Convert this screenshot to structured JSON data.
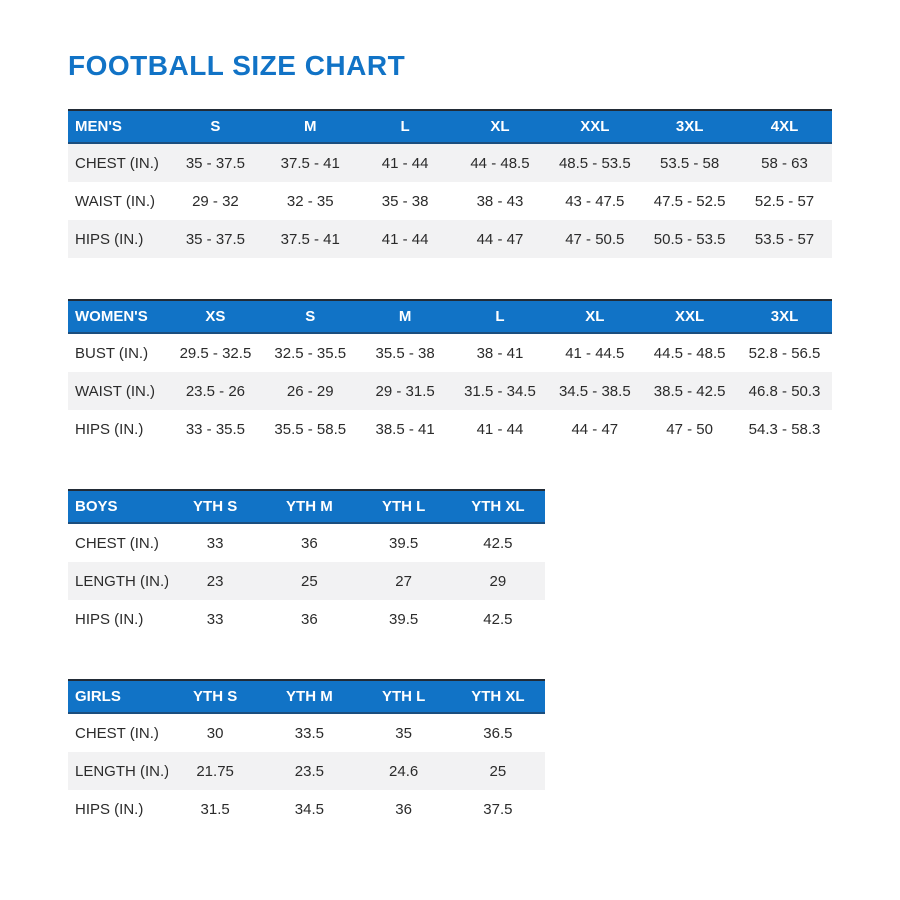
{
  "page": {
    "title": "FOOTBALL SIZE CHART"
  },
  "colors": {
    "accent_blue": "#1173C6",
    "header_text": "#FFFFFF",
    "stripe_gray": "#F2F2F3",
    "header_top_border": "#222B36",
    "body_text": "#2B2B2B"
  },
  "tables": [
    {
      "name": "MEN'S",
      "columns": [
        "S",
        "M",
        "L",
        "XL",
        "XXL",
        "3XL",
        "4XL"
      ],
      "rows": [
        {
          "label": "CHEST (IN.)",
          "values": [
            "35 - 37.5",
            "37.5 - 41",
            "41 - 44",
            "44 - 48.5",
            "48.5 - 53.5",
            "53.5 - 58",
            "58 - 63"
          ]
        },
        {
          "label": "WAIST (IN.)",
          "values": [
            "29 - 32",
            "32 - 35",
            "35 - 38",
            "38 - 43",
            "43 - 47.5",
            "47.5 - 52.5",
            "52.5 - 57"
          ]
        },
        {
          "label": "HIPS (IN.)",
          "values": [
            "35 - 37.5",
            "37.5 - 41",
            "41 - 44",
            "44 - 47",
            "47 - 50.5",
            "50.5 - 53.5",
            "53.5 - 57"
          ]
        }
      ]
    },
    {
      "name": "WOMEN'S",
      "columns": [
        "XS",
        "S",
        "M",
        "L",
        "XL",
        "XXL",
        "3XL"
      ],
      "rows": [
        {
          "label": "BUST (IN.)",
          "values": [
            "29.5 - 32.5",
            "32.5 - 35.5",
            "35.5 - 38",
            "38 - 41",
            "41 - 44.5",
            "44.5 - 48.5",
            "52.8 - 56.5"
          ]
        },
        {
          "label": "WAIST (IN.)",
          "values": [
            "23.5 - 26",
            "26 - 29",
            "29 - 31.5",
            "31.5 - 34.5",
            "34.5 - 38.5",
            "38.5 - 42.5",
            "46.8 - 50.3"
          ]
        },
        {
          "label": "HIPS (IN.)",
          "values": [
            "33 - 35.5",
            "35.5 - 58.5",
            "38.5 - 41",
            "41 - 44",
            "44 - 47",
            "47 - 50",
            "54.3 - 58.3"
          ]
        }
      ]
    },
    {
      "name": "BOYS",
      "columns": [
        "YTH S",
        "YTH M",
        "YTH L",
        "YTH XL"
      ],
      "rows": [
        {
          "label": "CHEST (IN.)",
          "values": [
            "33",
            "36",
            "39.5",
            "42.5"
          ]
        },
        {
          "label": "LENGTH (IN.)",
          "values": [
            "23",
            "25",
            "27",
            "29"
          ]
        },
        {
          "label": "HIPS (IN.)",
          "values": [
            "33",
            "36",
            "39.5",
            "42.5"
          ]
        }
      ]
    },
    {
      "name": "GIRLS",
      "columns": [
        "YTH S",
        "YTH M",
        "YTH L",
        "YTH XL"
      ],
      "rows": [
        {
          "label": "CHEST (IN.)",
          "values": [
            "30",
            "33.5",
            "35",
            "36.5"
          ]
        },
        {
          "label": "LENGTH (IN.)",
          "values": [
            "21.75",
            "23.5",
            "24.6",
            "25"
          ]
        },
        {
          "label": "HIPS (IN.)",
          "values": [
            "31.5",
            "34.5",
            "36",
            "37.5"
          ]
        }
      ]
    }
  ]
}
